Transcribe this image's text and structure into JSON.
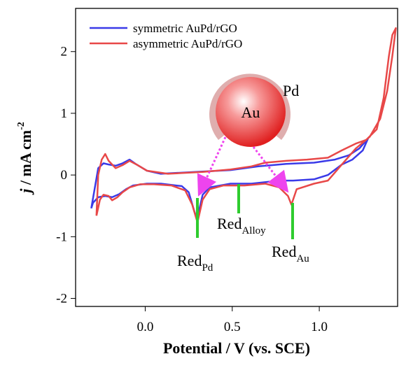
{
  "chart_data": {
    "type": "line",
    "x_label": "Potential / V (vs. SCE)",
    "y_label": {
      "symbol": "j",
      "text": " / mA cm",
      "exponent": "-2"
    },
    "xlim": [
      -0.4,
      1.45
    ],
    "ylim": [
      -2.13,
      2.7
    ],
    "xticks": [
      {
        "value": 0,
        "label": "0.0"
      },
      0.5,
      {
        "value": 1,
        "label": "1.0"
      }
    ],
    "yticks": [
      -2,
      -1,
      0,
      1,
      2
    ],
    "legend": "upper left",
    "series": [
      {
        "name": "symmetric AuPd/rGO",
        "color": "#3a3ae8",
        "x": [
          -0.31,
          -0.27,
          -0.24,
          -0.21,
          -0.17,
          -0.13,
          -0.09,
          -0.05,
          0.01,
          0.09,
          0.29,
          0.49,
          0.65,
          0.81,
          0.97,
          1.09,
          1.17,
          1.23,
          1.28,
          1.25,
          1.19,
          1.13,
          1.05,
          0.97,
          0.85,
          0.77,
          0.61,
          0.49,
          0.37,
          0.33,
          0.31,
          0.3,
          0.28,
          0.25,
          0.21,
          0.09,
          0.01,
          -0.07,
          -0.11,
          -0.15,
          -0.19,
          -0.23,
          -0.27,
          -0.3,
          -0.31
        ],
        "values": [
          -0.54,
          0.11,
          0.19,
          0.17,
          0.15,
          0.19,
          0.25,
          0.17,
          0.07,
          0.02,
          0.05,
          0.08,
          0.14,
          0.18,
          0.2,
          0.25,
          0.32,
          0.43,
          0.59,
          0.4,
          0.25,
          0.17,
          0.0,
          -0.07,
          -0.09,
          -0.09,
          -0.14,
          -0.14,
          -0.2,
          -0.32,
          -0.57,
          -0.74,
          -0.57,
          -0.28,
          -0.18,
          -0.14,
          -0.14,
          -0.17,
          -0.23,
          -0.31,
          -0.36,
          -0.34,
          -0.36,
          -0.45,
          -0.54
        ]
      },
      {
        "name": "asymmetric AuPd/rGO",
        "color": "#e84848",
        "x": [
          -0.28,
          -0.27,
          -0.25,
          -0.23,
          -0.21,
          -0.17,
          -0.13,
          -0.09,
          -0.05,
          0.01,
          0.13,
          0.33,
          0.49,
          0.61,
          0.69,
          0.81,
          0.93,
          1.05,
          1.13,
          1.21,
          1.27,
          1.33,
          1.37,
          1.4,
          1.42,
          1.44,
          1.42,
          1.39,
          1.35,
          1.29,
          1.21,
          1.13,
          1.05,
          0.97,
          0.87,
          0.84,
          0.82,
          0.77,
          0.69,
          0.57,
          0.45,
          0.37,
          0.33,
          0.3,
          0.27,
          0.23,
          0.15,
          0.05,
          -0.03,
          -0.09,
          -0.13,
          -0.16,
          -0.19,
          -0.21,
          -0.24,
          -0.26,
          -0.28
        ],
        "values": [
          -0.66,
          0.0,
          0.25,
          0.34,
          0.23,
          0.11,
          0.16,
          0.23,
          0.17,
          0.07,
          0.02,
          0.05,
          0.09,
          0.14,
          0.2,
          0.23,
          0.25,
          0.28,
          0.4,
          0.51,
          0.57,
          0.74,
          1.25,
          1.93,
          2.27,
          2.38,
          1.93,
          1.36,
          0.91,
          0.62,
          0.43,
          0.17,
          -0.09,
          -0.14,
          -0.23,
          -0.48,
          -0.34,
          -0.2,
          -0.14,
          -0.17,
          -0.17,
          -0.23,
          -0.4,
          -0.77,
          -0.48,
          -0.25,
          -0.17,
          -0.15,
          -0.15,
          -0.2,
          -0.28,
          -0.36,
          -0.41,
          -0.34,
          -0.32,
          -0.4,
          -0.66
        ]
      }
    ],
    "annotations": [
      {
        "text": "Red",
        "sub": "Pd"
      },
      {
        "text": "Red",
        "sub": "Alloy"
      },
      {
        "text": "Red",
        "sub": "Au"
      }
    ],
    "particle_labels": {
      "core": "Au",
      "shell": "Pd"
    }
  }
}
